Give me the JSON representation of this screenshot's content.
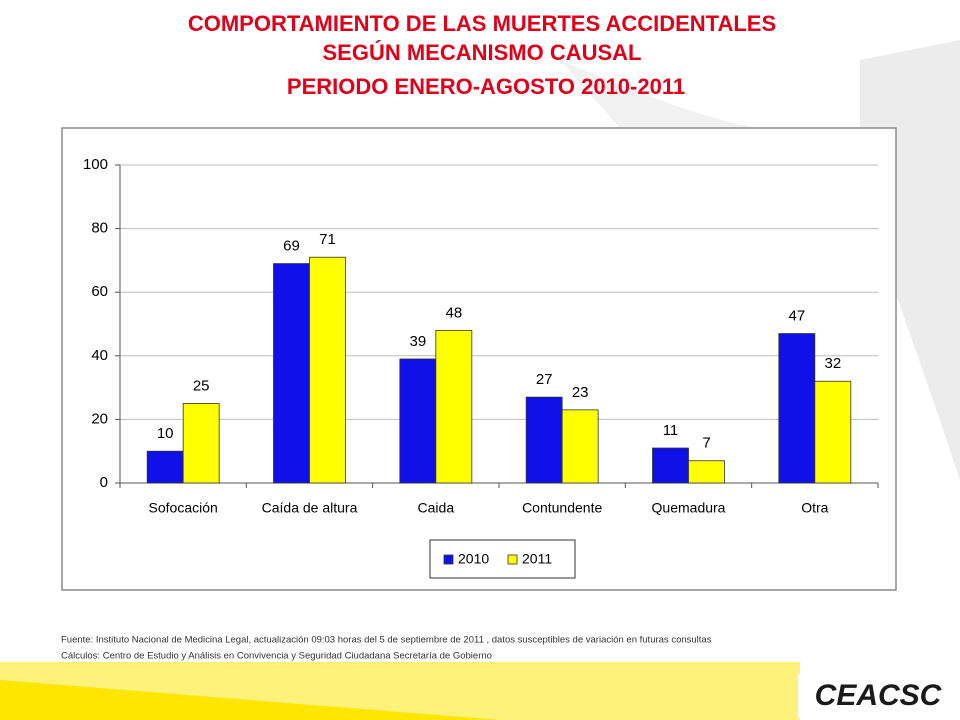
{
  "chart_data": {
    "type": "bar",
    "title": [
      "COMPORTAMIENTO DE LAS MUERTES ACCIDENTALES",
      "SEGÚN MECANISMO CAUSAL",
      "PERIODO ENERO-AGOSTO 2010-2011"
    ],
    "categories": [
      "Sofocación",
      "Caída de altura",
      "Caida",
      "Contundente",
      "Quemadura",
      "Otra"
    ],
    "series": [
      {
        "name": "2010",
        "color": "#1010e8",
        "values": [
          10,
          69,
          39,
          27,
          11,
          47
        ]
      },
      {
        "name": "2011",
        "color": "#ffff00",
        "values": [
          25,
          71,
          48,
          23,
          7,
          32
        ]
      }
    ],
    "ylim": [
      0,
      100
    ],
    "yticks": [
      0,
      20,
      40,
      60,
      80,
      100
    ],
    "grid": true,
    "legend": "bottom"
  },
  "footer": [
    "Fuente: Instituto Nacional de Medicina Legal, actualización  09:03 horas del 5 de septiembre de 2011 , datos susceptibles de variación en futuras consultas",
    "Cálculos: Centro de Estudio y Análisis en Convivencia y Seguridad Ciudadana Secretaría de Gobierno"
  ],
  "logo": "CEACSC"
}
